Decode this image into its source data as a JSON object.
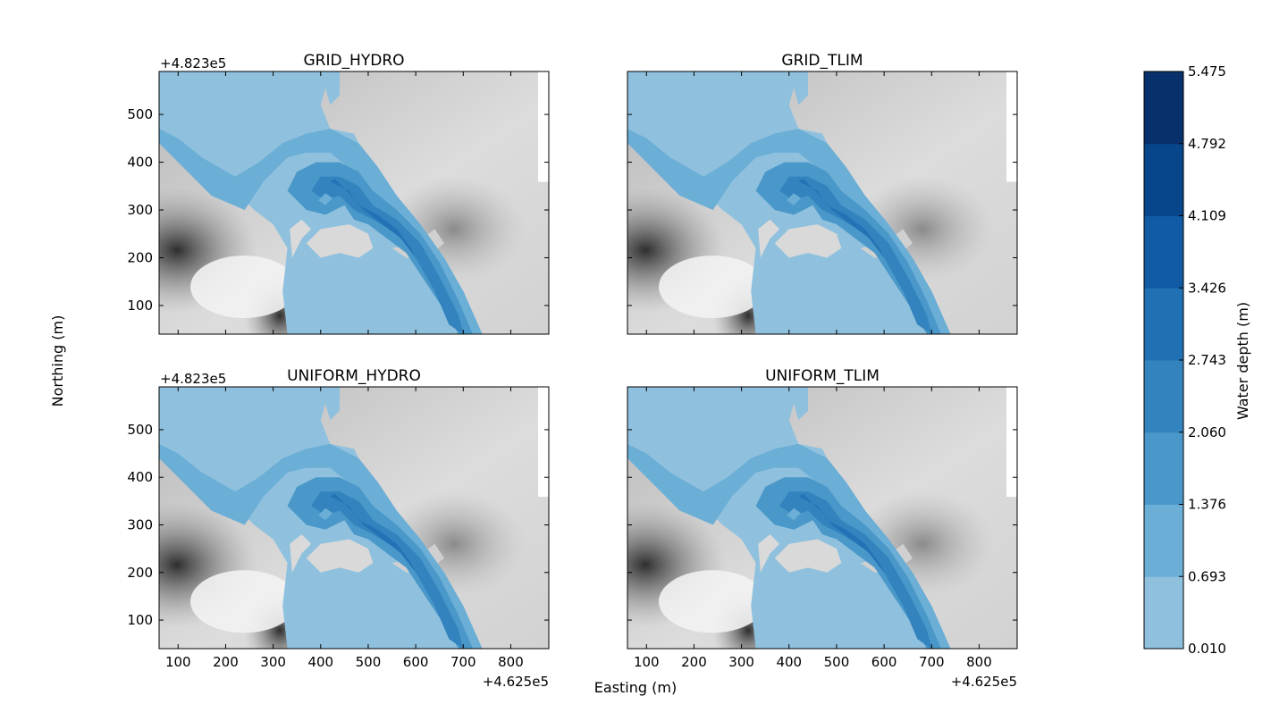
{
  "figure": {
    "xlabel": "Easting (m)",
    "ylabel": "Northing (m)"
  },
  "chart_data": {
    "type": "heatmap",
    "description_kind": "water-depth flood maps over hillshaded terrain",
    "x_offset_label": "+4.625e5",
    "y_offset_label": "+4.823e5",
    "xlim": [
      60,
      880
    ],
    "ylim": [
      40,
      590
    ],
    "xticks": [
      100,
      200,
      300,
      400,
      500,
      600,
      700,
      800
    ],
    "yticks": [
      100,
      200,
      300,
      400,
      500
    ],
    "panels": [
      {
        "title": "GRID_HYDRO",
        "show_xticklabels": false,
        "show_yticklabels": true
      },
      {
        "title": "GRID_TLIM",
        "show_xticklabels": false,
        "show_yticklabels": false
      },
      {
        "title": "UNIFORM_HYDRO",
        "show_xticklabels": true,
        "show_yticklabels": true
      },
      {
        "title": "UNIFORM_TLIM",
        "show_xticklabels": true,
        "show_yticklabels": false
      }
    ],
    "colorbar": {
      "label": "Water depth (m)",
      "levels": [
        "0.010",
        "0.693",
        "1.376",
        "2.060",
        "2.743",
        "3.426",
        "4.109",
        "4.792",
        "5.475"
      ],
      "colors": [
        "#8fc1de",
        "#6baed6",
        "#4a98c9",
        "#3383be",
        "#2070b4",
        "#105ba4",
        "#08468b",
        "#08306b"
      ]
    },
    "terrain_colors": {
      "light": "#e6e6e6",
      "mid": "#c8c8c8",
      "dark": "#3a3a3a"
    },
    "grid": false
  }
}
